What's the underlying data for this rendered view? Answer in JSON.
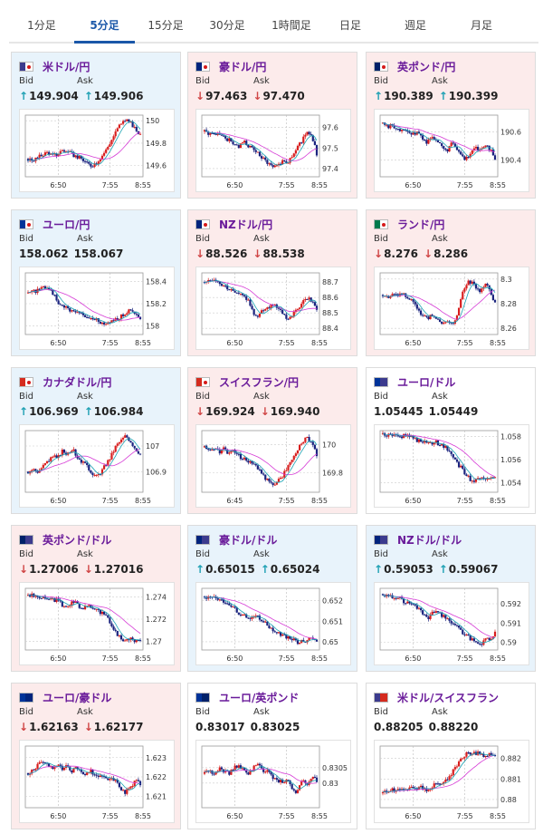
{
  "tabs": [
    {
      "label": "1分足",
      "active": false
    },
    {
      "label": "5分足",
      "active": true
    },
    {
      "label": "15分足",
      "active": false
    },
    {
      "label": "30分足",
      "active": false
    },
    {
      "label": "1時間足",
      "active": false
    },
    {
      "label": "日足",
      "active": false
    },
    {
      "label": "週足",
      "active": false
    },
    {
      "label": "月足",
      "active": false
    }
  ],
  "labels": {
    "bid": "Bid",
    "ask": "Ask"
  },
  "colors": {
    "up_candle": "#d81e1e",
    "down_candle": "#1a237e",
    "ma_line": "#d63cd6",
    "ma_line2": "#1aa3b3",
    "tab_active": "#1a57a8",
    "pair_name": "#6a1b9a",
    "card_blue": "#e8f3fb",
    "card_pink": "#fcebeb",
    "arrow_up": "#1ea0b3",
    "arrow_down": "#d04545"
  },
  "pairs": [
    {
      "name": "米ドル/円",
      "flag": "us-jp-flag-icon",
      "bid": "149.904",
      "ask": "149.906",
      "dir": "up",
      "bg": "blue",
      "chart_data": {
        "type": "candlestick",
        "x_ticks": [
          "6:50",
          "7:55",
          "8:55"
        ],
        "y_ticks": [
          "150",
          "149.8",
          "149.6"
        ],
        "ylim": [
          149.5,
          150.05
        ],
        "trend": [
          149.66,
          149.65,
          149.67,
          149.7,
          149.72,
          149.69,
          149.7,
          149.74,
          149.72,
          149.7,
          149.68,
          149.66,
          149.62,
          149.6,
          149.63,
          149.68,
          149.74,
          149.82,
          149.9,
          149.98,
          150.0,
          149.98,
          149.92,
          149.88
        ]
      }
    },
    {
      "name": "豪ドル/円",
      "flag": "au-jp-flag-icon",
      "bid": "97.463",
      "ask": "97.470",
      "dir": "down",
      "bg": "pink",
      "chart_data": {
        "type": "candlestick",
        "x_ticks": [
          "6:50",
          "7:55",
          "8:55"
        ],
        "y_ticks": [
          "97.6",
          "97.5",
          "97.4"
        ],
        "ylim": [
          97.36,
          97.66
        ],
        "trend": [
          97.58,
          97.57,
          97.56,
          97.57,
          97.55,
          97.54,
          97.52,
          97.5,
          97.53,
          97.51,
          97.49,
          97.47,
          97.45,
          97.43,
          97.41,
          97.42,
          97.44,
          97.43,
          97.46,
          97.5,
          97.54,
          97.58,
          97.56,
          97.47
        ]
      }
    },
    {
      "name": "英ポンド/円",
      "flag": "gb-jp-flag-icon",
      "bid": "190.389",
      "ask": "190.399",
      "dir": "up",
      "bg": "pink",
      "chart_data": {
        "type": "candlestick",
        "x_ticks": [
          "6:50",
          "7:55",
          "8:55"
        ],
        "y_ticks": [
          "190.6",
          "190.4"
        ],
        "ylim": [
          190.28,
          190.72
        ],
        "trend": [
          190.66,
          190.63,
          190.65,
          190.62,
          190.6,
          190.62,
          190.58,
          190.6,
          190.56,
          190.52,
          190.58,
          190.54,
          190.5,
          190.46,
          190.52,
          190.48,
          190.44,
          190.4,
          190.46,
          190.5,
          190.47,
          190.52,
          190.48,
          190.39
        ]
      }
    },
    {
      "name": "ユーロ/円",
      "flag": "eu-jp-flag-icon",
      "bid": "158.062",
      "ask": "158.067",
      "dir": "none",
      "bg": "blue",
      "chart_data": {
        "type": "candlestick",
        "x_ticks": [
          "6:50",
          "7:55",
          "8:55"
        ],
        "y_ticks": [
          "158.4",
          "158.2",
          "158"
        ],
        "ylim": [
          157.92,
          158.48
        ],
        "trend": [
          158.3,
          158.31,
          158.32,
          158.34,
          158.36,
          158.3,
          158.22,
          158.18,
          158.16,
          158.14,
          158.12,
          158.1,
          158.08,
          158.06,
          158.05,
          158.03,
          158.02,
          158.04,
          158.06,
          158.08,
          158.12,
          158.14,
          158.1,
          158.06
        ]
      }
    },
    {
      "name": "NZドル/円",
      "flag": "nz-jp-flag-icon",
      "bid": "88.526",
      "ask": "88.538",
      "dir": "down",
      "bg": "pink",
      "chart_data": {
        "type": "candlestick",
        "x_ticks": [
          "6:50",
          "7:55",
          "8:55"
        ],
        "y_ticks": [
          "88.7",
          "88.6",
          "88.5",
          "88.4"
        ],
        "ylim": [
          88.36,
          88.76
        ],
        "trend": [
          88.7,
          88.71,
          88.72,
          88.7,
          88.68,
          88.66,
          88.64,
          88.62,
          88.6,
          88.58,
          88.5,
          88.48,
          88.52,
          88.54,
          88.56,
          88.53,
          88.5,
          88.46,
          88.48,
          88.52,
          88.56,
          88.6,
          88.58,
          88.53
        ]
      }
    },
    {
      "name": "ランド/円",
      "flag": "za-jp-flag-icon",
      "bid": "8.276",
      "ask": "8.286",
      "dir": "down",
      "bg": "pink",
      "chart_data": {
        "type": "candlestick",
        "x_ticks": [
          "6:50",
          "7:55",
          "8:55"
        ],
        "y_ticks": [
          "8.3",
          "8.28",
          "8.26"
        ],
        "ylim": [
          8.255,
          8.305
        ],
        "trend": [
          8.287,
          8.286,
          8.287,
          8.286,
          8.288,
          8.285,
          8.283,
          8.275,
          8.272,
          8.268,
          8.27,
          8.267,
          8.265,
          8.266,
          8.264,
          8.266,
          8.285,
          8.296,
          8.298,
          8.294,
          8.29,
          8.296,
          8.29,
          8.28
        ]
      }
    },
    {
      "name": "カナダドル/円",
      "flag": "ca-jp-flag-icon",
      "bid": "106.969",
      "ask": "106.984",
      "dir": "up",
      "bg": "blue",
      "chart_data": {
        "type": "candlestick",
        "x_ticks": [
          "6:50",
          "7:55",
          "8:55"
        ],
        "y_ticks": [
          "107",
          "106.9"
        ],
        "ylim": [
          106.82,
          107.06
        ],
        "trend": [
          106.9,
          106.91,
          106.9,
          106.92,
          106.94,
          106.96,
          106.95,
          106.98,
          106.97,
          106.99,
          106.96,
          106.94,
          106.92,
          106.9,
          106.88,
          106.9,
          106.93,
          106.96,
          107.0,
          107.02,
          107.04,
          107.02,
          106.99,
          106.97
        ]
      }
    },
    {
      "name": "スイスフラン/円",
      "flag": "ch-jp-flag-icon",
      "bid": "169.924",
      "ask": "169.940",
      "dir": "down",
      "bg": "pink",
      "chart_data": {
        "type": "candlestick",
        "x_ticks": [
          "6:45",
          "7:55",
          "8:55"
        ],
        "y_ticks": [
          "170",
          "169.8"
        ],
        "ylim": [
          169.66,
          170.1
        ],
        "trend": [
          169.98,
          169.97,
          169.96,
          169.95,
          169.97,
          169.94,
          169.96,
          169.92,
          169.9,
          169.88,
          169.86,
          169.82,
          169.78,
          169.74,
          169.72,
          169.74,
          169.78,
          169.84,
          169.9,
          169.96,
          170.02,
          170.05,
          170.0,
          169.93
        ]
      }
    },
    {
      "name": "ユーロ/ドル",
      "flag": "eu-us-flag-icon",
      "bid": "1.05445",
      "ask": "1.05449",
      "dir": "none",
      "bg": "white",
      "chart_data": {
        "type": "candlestick",
        "x_ticks": [
          "6:50",
          "7:55",
          "8:55"
        ],
        "y_ticks": [
          "1.058",
          "1.056",
          "1.054"
        ],
        "ylim": [
          1.0532,
          1.0585
        ],
        "trend": [
          1.0582,
          1.0581,
          1.0582,
          1.0581,
          1.058,
          1.0581,
          1.0579,
          1.0577,
          1.0576,
          1.0575,
          1.0574,
          1.0575,
          1.0573,
          1.0571,
          1.0565,
          1.0558,
          1.0553,
          1.0547,
          1.0543,
          1.0542,
          1.0543,
          1.0544,
          1.0544,
          1.0544
        ]
      }
    },
    {
      "name": "英ポンド/ドル",
      "flag": "gb-us-flag-icon",
      "bid": "1.27006",
      "ask": "1.27016",
      "dir": "down",
      "bg": "pink",
      "chart_data": {
        "type": "candlestick",
        "x_ticks": [
          "6:50",
          "7:55",
          "8:55"
        ],
        "y_ticks": [
          "1.274",
          "1.272",
          "1.27"
        ],
        "ylim": [
          1.2692,
          1.2748
        ],
        "trend": [
          1.2742,
          1.2741,
          1.274,
          1.2741,
          1.2739,
          1.2738,
          1.2737,
          1.2733,
          1.2731,
          1.2736,
          1.2734,
          1.273,
          1.2732,
          1.273,
          1.2728,
          1.2726,
          1.2722,
          1.2716,
          1.2708,
          1.2702,
          1.2701,
          1.2702,
          1.2701,
          1.2701
        ]
      }
    },
    {
      "name": "豪ドル/ドル",
      "flag": "au-us-flag-icon",
      "bid": "0.65015",
      "ask": "0.65024",
      "dir": "up",
      "bg": "blue",
      "chart_data": {
        "type": "candlestick",
        "x_ticks": [
          "6:50",
          "7:55",
          "8:55"
        ],
        "y_ticks": [
          "0.652",
          "0.651",
          "0.65"
        ],
        "ylim": [
          0.6496,
          0.6526
        ],
        "trend": [
          0.6522,
          0.6521,
          0.6521,
          0.652,
          0.6519,
          0.6517,
          0.6516,
          0.6514,
          0.6513,
          0.6511,
          0.6513,
          0.6512,
          0.651,
          0.6508,
          0.6506,
          0.6504,
          0.6503,
          0.6502,
          0.6501,
          0.65,
          0.65,
          0.6501,
          0.6502,
          0.6501
        ]
      }
    },
    {
      "name": "NZドル/ドル",
      "flag": "nz-us-flag-icon",
      "bid": "0.59053",
      "ask": "0.59067",
      "dir": "up",
      "bg": "blue",
      "chart_data": {
        "type": "candlestick",
        "x_ticks": [
          "6:50",
          "7:55",
          "8:55"
        ],
        "y_ticks": [
          "0.592",
          "0.591",
          "0.59"
        ],
        "ylim": [
          0.5896,
          0.5928
        ],
        "trend": [
          0.5925,
          0.5924,
          0.5923,
          0.5924,
          0.5922,
          0.592,
          0.5921,
          0.5918,
          0.5916,
          0.5912,
          0.5915,
          0.5917,
          0.5914,
          0.5913,
          0.591,
          0.5908,
          0.5906,
          0.5904,
          0.5902,
          0.59,
          0.5899,
          0.5901,
          0.5902,
          0.5905
        ]
      }
    },
    {
      "name": "ユーロ/豪ドル",
      "flag": "eu-au-flag-icon",
      "bid": "1.62163",
      "ask": "1.62177",
      "dir": "down",
      "bg": "pink",
      "chart_data": {
        "type": "candlestick",
        "x_ticks": [
          "6:50",
          "7:55",
          "8:55"
        ],
        "y_ticks": [
          "1.623",
          "1.622",
          "1.621"
        ],
        "ylim": [
          1.6204,
          1.6236
        ],
        "trend": [
          1.6222,
          1.6224,
          1.6226,
          1.6228,
          1.6226,
          1.6225,
          1.6227,
          1.6224,
          1.6226,
          1.6223,
          1.6225,
          1.6222,
          1.6221,
          1.6223,
          1.622,
          1.6222,
          1.6219,
          1.622,
          1.6218,
          1.6214,
          1.6212,
          1.6215,
          1.6218,
          1.6216
        ]
      }
    },
    {
      "name": "ユーロ/英ポンド",
      "flag": "eu-gb-flag-icon",
      "bid": "0.83017",
      "ask": "0.83025",
      "dir": "none",
      "bg": "white",
      "chart_data": {
        "type": "candlestick",
        "x_ticks": [
          "6:50",
          "7:55",
          "8:55"
        ],
        "y_ticks": [
          "0.8305",
          "0.83"
        ],
        "ylim": [
          0.8292,
          0.8312
        ],
        "trend": [
          0.8303,
          0.8304,
          0.8303,
          0.8305,
          0.8304,
          0.8303,
          0.8305,
          0.8306,
          0.8304,
          0.8303,
          0.8305,
          0.8307,
          0.8303,
          0.8304,
          0.8302,
          0.8301,
          0.83,
          0.8302,
          0.8298,
          0.8297,
          0.8301,
          0.83,
          0.8302,
          0.8301
        ]
      }
    },
    {
      "name": "米ドル/スイスフラン",
      "flag": "us-ch-flag-icon",
      "bid": "0.88205",
      "ask": "0.88220",
      "dir": "none",
      "bg": "white",
      "chart_data": {
        "type": "candlestick",
        "x_ticks": [
          "6:50",
          "7:55",
          "8:55"
        ],
        "y_ticks": [
          "0.882",
          "0.881",
          "0.88"
        ],
        "ylim": [
          0.8796,
          0.8826
        ],
        "trend": [
          0.8803,
          0.8804,
          0.8805,
          0.8804,
          0.8806,
          0.8805,
          0.8807,
          0.8805,
          0.8806,
          0.8804,
          0.8806,
          0.8808,
          0.8807,
          0.881,
          0.8812,
          0.8816,
          0.882,
          0.8822,
          0.8823,
          0.8822,
          0.8823,
          0.8821,
          0.8822,
          0.8821
        ]
      }
    }
  ]
}
